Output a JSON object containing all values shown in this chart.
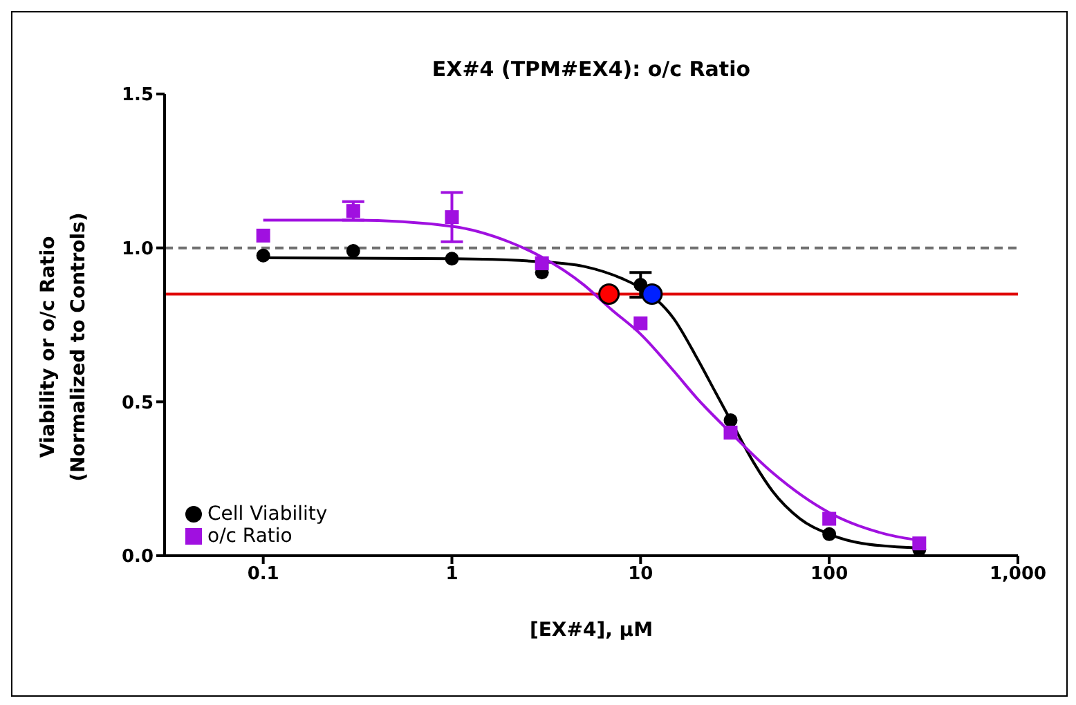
{
  "chart_data": {
    "type": "scatter",
    "title": "EX#4 (TPM#EX4): o/c Ratio",
    "xlabel": "[EX#4], μM",
    "ylabel": "Viability or o/c Ratio (Normalized to Controls)",
    "log": "x",
    "xlim": [
      0.03,
      1000
    ],
    "xticks": [
      0.1,
      1,
      10,
      100,
      {
        "value": 1000,
        "label": "1,000"
      }
    ],
    "ylim": [
      0,
      1.5
    ],
    "yticks": [
      {
        "value": 0,
        "label": "0.0"
      },
      {
        "value": 0.5,
        "label": "0.5"
      },
      {
        "value": 1,
        "label": "1.0"
      },
      {
        "value": 1.5,
        "label": "1.5"
      }
    ],
    "legend": "bottom left",
    "ref_lines": [
      {
        "axis": "y",
        "value": 1,
        "color": "#707070",
        "line_style": "dashed"
      },
      {
        "axis": "y",
        "value": 0.85,
        "color": "#e00000",
        "line_style": "solid"
      }
    ],
    "series": [
      {
        "type": "line",
        "color": "#000000",
        "x": [
          0.1,
          1,
          3,
          5,
          8,
          10,
          15,
          20,
          25,
          30,
          40,
          50,
          70,
          100,
          150,
          300
        ],
        "values": [
          0.968,
          0.965,
          0.955,
          0.94,
          0.9,
          0.87,
          0.77,
          0.64,
          0.53,
          0.44,
          0.3,
          0.21,
          0.12,
          0.07,
          0.04,
          0.025
        ]
      },
      {
        "type": "line",
        "color": "#a010e0",
        "x": [
          0.1,
          0.3,
          1,
          2,
          3,
          5,
          7,
          10,
          15,
          20,
          30,
          50,
          100,
          200,
          300
        ],
        "values": [
          1.09,
          1.09,
          1.07,
          1.02,
          0.97,
          0.88,
          0.8,
          0.72,
          0.6,
          0.51,
          0.4,
          0.27,
          0.14,
          0.07,
          0.05
        ]
      },
      {
        "name": "Cell Viability",
        "color": "#000000",
        "marker": "circle",
        "x": [
          0.1,
          0.3,
          1,
          3,
          10,
          30,
          100,
          300
        ],
        "values": [
          0.975,
          0.99,
          0.965,
          0.92,
          0.88,
          0.44,
          0.07,
          0.02
        ],
        "errors": [
          null,
          null,
          null,
          null,
          0.04,
          null,
          null,
          null
        ]
      },
      {
        "name": "o/c Ratio",
        "color": "#a010e0",
        "marker": "square",
        "x": [
          0.1,
          0.3,
          1,
          3,
          10,
          30,
          100,
          300
        ],
        "values": [
          1.04,
          1.12,
          1.1,
          0.95,
          0.755,
          0.4,
          0.12,
          0.04
        ],
        "errors": [
          null,
          0.03,
          0.08,
          null,
          null,
          null,
          null,
          null
        ]
      },
      {
        "color": "#ff0000",
        "marker": "circle",
        "x": [
          6.8
        ],
        "values": [
          0.85
        ]
      },
      {
        "color": "#0020ff",
        "marker": "circle",
        "x": [
          11.5
        ],
        "values": [
          0.85
        ]
      }
    ]
  }
}
